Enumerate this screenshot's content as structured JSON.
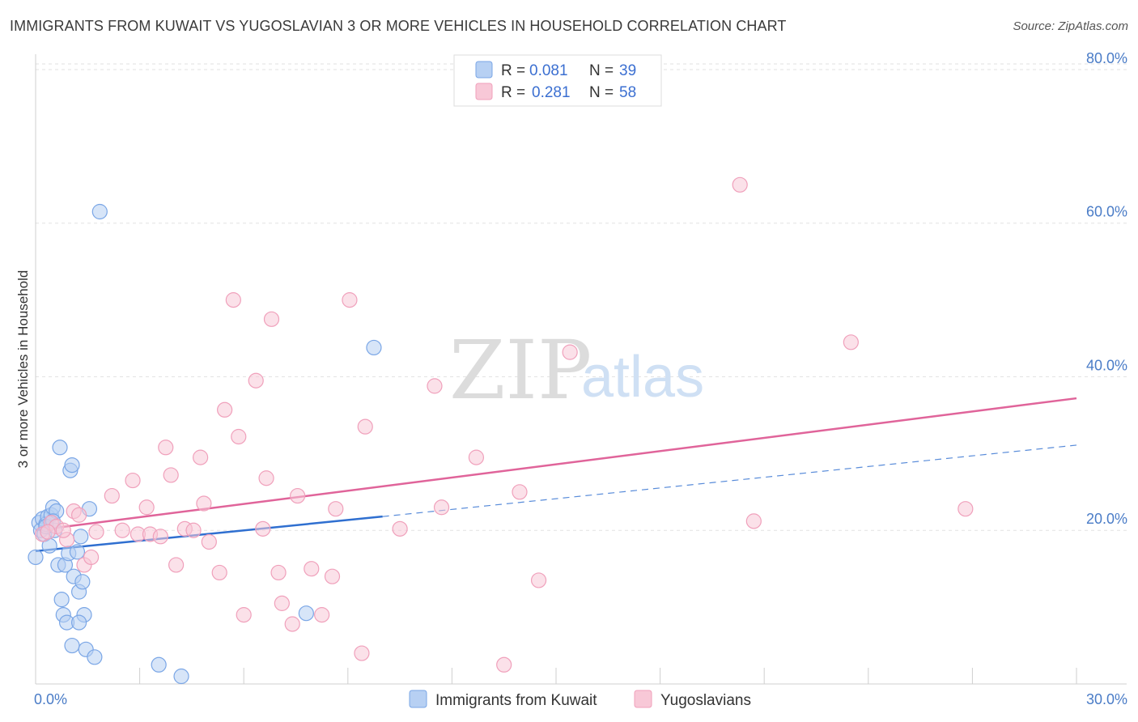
{
  "title": "IMMIGRANTS FROM KUWAIT VS YUGOSLAVIAN 3 OR MORE VEHICLES IN HOUSEHOLD CORRELATION CHART",
  "source": "Source: ZipAtlas.com",
  "watermark": {
    "zip": "ZIP",
    "atlas": "atlas"
  },
  "legend": {
    "r_label": "R =",
    "n_label": "N =",
    "rows": [
      {
        "r": "0.081",
        "n": "39"
      },
      {
        "r": "0.281",
        "n": "58"
      }
    ]
  },
  "chart_data": {
    "type": "scatter",
    "title": "IMMIGRANTS FROM KUWAIT VS YUGOSLAVIAN 3 OR MORE VEHICLES IN HOUSEHOLD CORRELATION CHART",
    "xlabel": "",
    "ylabel": "3 or more Vehicles in Household",
    "xlim": [
      0,
      30
    ],
    "ylim": [
      0,
      82
    ],
    "x_tick_labels": [
      {
        "value": 0,
        "label": "0.0%"
      },
      {
        "value": 30,
        "label": "30.0%"
      }
    ],
    "y_tick_labels": [
      {
        "value": 20,
        "label": "20.0%"
      },
      {
        "value": 40,
        "label": "40.0%"
      },
      {
        "value": 60,
        "label": "60.0%"
      },
      {
        "value": 80,
        "label": "80.0%"
      }
    ],
    "grid": true,
    "legend_position": "top-center",
    "series": [
      {
        "name": "Immigrants from Kuwait",
        "color": "#7aa6e6",
        "fill": "#b7d0f3",
        "trend_color": "#2f6fd0",
        "trend": {
          "x0": 0,
          "y0": 17.3,
          "x1": 10,
          "y1": 21.8,
          "dash_x1": 30,
          "dash_y1": 31.1
        },
        "points": [
          [
            0.0,
            16.5
          ],
          [
            0.1,
            21.0
          ],
          [
            0.15,
            20.0
          ],
          [
            0.2,
            21.5
          ],
          [
            0.25,
            19.5
          ],
          [
            0.3,
            20.8
          ],
          [
            0.35,
            21.8
          ],
          [
            0.4,
            18.0
          ],
          [
            0.45,
            22.0
          ],
          [
            0.5,
            23.0
          ],
          [
            0.55,
            20.0
          ],
          [
            0.6,
            22.5
          ],
          [
            0.65,
            15.5
          ],
          [
            0.7,
            30.8
          ],
          [
            0.75,
            11.0
          ],
          [
            0.8,
            9.0
          ],
          [
            0.85,
            15.5
          ],
          [
            0.9,
            8.0
          ],
          [
            0.95,
            17.0
          ],
          [
            1.0,
            27.8
          ],
          [
            1.05,
            28.5
          ],
          [
            1.1,
            14.0
          ],
          [
            1.05,
            5.0
          ],
          [
            1.2,
            17.2
          ],
          [
            1.25,
            12.0
          ],
          [
            1.3,
            19.2
          ],
          [
            1.35,
            13.3
          ],
          [
            1.4,
            9.0
          ],
          [
            1.45,
            4.5
          ],
          [
            1.55,
            22.8
          ],
          [
            1.25,
            8.0
          ],
          [
            1.7,
            3.5
          ],
          [
            1.85,
            61.5
          ],
          [
            3.55,
            2.5
          ],
          [
            4.2,
            1.0
          ],
          [
            9.75,
            43.8
          ],
          [
            7.8,
            9.2
          ],
          [
            0.3,
            20.5
          ],
          [
            0.5,
            21.2
          ]
        ]
      },
      {
        "name": "Yugoslavians",
        "color": "#f0a0bb",
        "fill": "#f8c8d7",
        "trend_color": "#e0649a",
        "trend": {
          "x0": 0,
          "y0": 20.0,
          "x1": 30,
          "y1": 37.2
        },
        "points": [
          [
            0.2,
            19.5
          ],
          [
            0.45,
            21.0
          ],
          [
            0.6,
            20.5
          ],
          [
            0.9,
            18.8
          ],
          [
            1.1,
            22.5
          ],
          [
            1.25,
            22.0
          ],
          [
            1.4,
            15.5
          ],
          [
            1.6,
            16.5
          ],
          [
            1.75,
            19.8
          ],
          [
            2.2,
            24.5
          ],
          [
            2.5,
            20.0
          ],
          [
            2.8,
            26.5
          ],
          [
            2.95,
            19.5
          ],
          [
            3.2,
            23.0
          ],
          [
            3.3,
            19.5
          ],
          [
            3.6,
            19.2
          ],
          [
            3.75,
            30.8
          ],
          [
            3.9,
            27.2
          ],
          [
            4.05,
            15.5
          ],
          [
            4.3,
            20.2
          ],
          [
            4.55,
            20.0
          ],
          [
            4.85,
            23.5
          ],
          [
            4.75,
            29.5
          ],
          [
            5.0,
            18.5
          ],
          [
            5.3,
            14.5
          ],
          [
            5.45,
            35.7
          ],
          [
            5.7,
            50.0
          ],
          [
            6.0,
            9.0
          ],
          [
            5.85,
            32.2
          ],
          [
            6.35,
            39.5
          ],
          [
            6.55,
            20.2
          ],
          [
            6.65,
            26.8
          ],
          [
            6.8,
            47.5
          ],
          [
            7.0,
            14.5
          ],
          [
            7.1,
            10.5
          ],
          [
            7.4,
            7.8
          ],
          [
            7.55,
            24.5
          ],
          [
            7.95,
            15.0
          ],
          [
            8.25,
            9.0
          ],
          [
            8.55,
            14.0
          ],
          [
            8.65,
            22.8
          ],
          [
            9.05,
            50.0
          ],
          [
            9.4,
            4.0
          ],
          [
            9.5,
            33.5
          ],
          [
            10.5,
            20.2
          ],
          [
            11.5,
            38.8
          ],
          [
            11.7,
            23.0
          ],
          [
            12.7,
            29.5
          ],
          [
            13.5,
            2.5
          ],
          [
            13.95,
            25.0
          ],
          [
            14.5,
            13.5
          ],
          [
            15.4,
            43.2
          ],
          [
            20.3,
            65.0
          ],
          [
            20.7,
            21.2
          ],
          [
            23.5,
            44.5
          ],
          [
            26.8,
            22.8
          ],
          [
            0.8,
            20.0
          ],
          [
            0.35,
            19.8
          ]
        ]
      }
    ]
  },
  "bottom_legend": [
    "Immigrants from Kuwait",
    "Yugoslavians"
  ]
}
